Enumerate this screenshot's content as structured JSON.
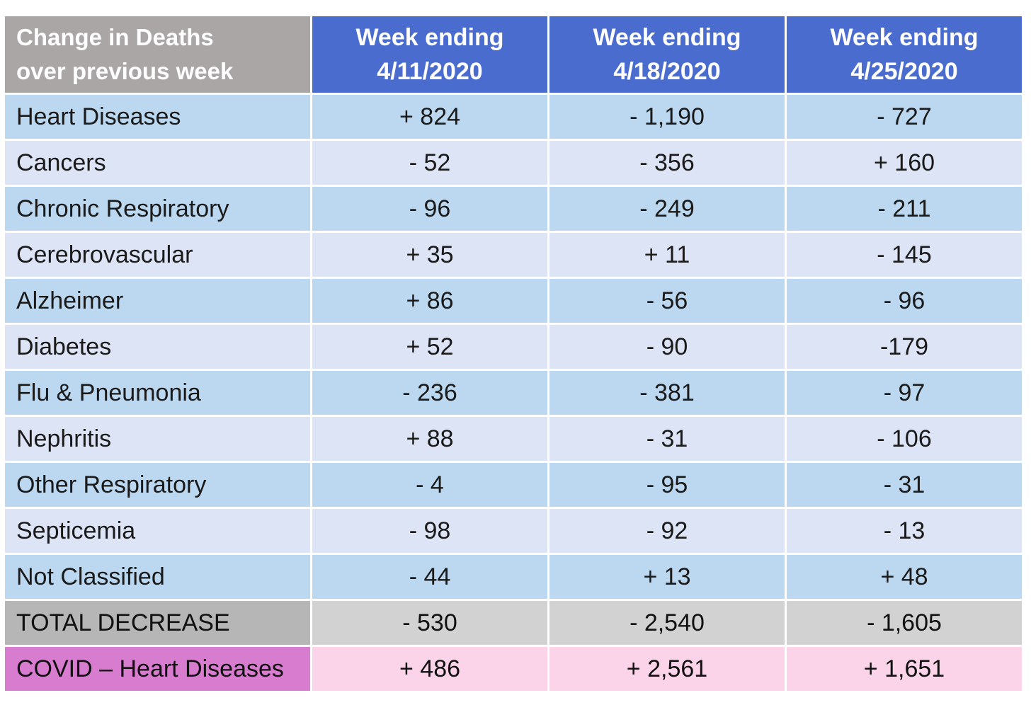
{
  "chart_data": {
    "type": "table",
    "header": {
      "corner_line1": "Change in Deaths",
      "corner_line2": "over previous week",
      "columns": [
        {
          "line1": "Week ending",
          "line2": "4/11/2020"
        },
        {
          "line1": "Week ending",
          "line2": "4/18/2020"
        },
        {
          "line1": "Week ending",
          "line2": "4/25/2020"
        }
      ]
    },
    "rows": [
      {
        "label": "Heart Diseases",
        "values": [
          "+ 824",
          "- 1,190",
          "- 727"
        ]
      },
      {
        "label": "Cancers",
        "values": [
          "- 52",
          "- 356",
          "+ 160"
        ]
      },
      {
        "label": "Chronic Respiratory",
        "values": [
          "- 96",
          "- 249",
          "- 211"
        ]
      },
      {
        "label": "Cerebrovascular",
        "values": [
          "+ 35",
          "+  11",
          "- 145"
        ]
      },
      {
        "label": "Alzheimer",
        "values": [
          "+ 86",
          "- 56",
          "- 96"
        ]
      },
      {
        "label": "Diabetes",
        "values": [
          "+ 52",
          "- 90",
          "-179"
        ]
      },
      {
        "label": "Flu & Pneumonia",
        "values": [
          "- 236",
          "- 381",
          "- 97"
        ]
      },
      {
        "label": "Nephritis",
        "values": [
          "+ 88",
          "- 31",
          "- 106"
        ]
      },
      {
        "label": "Other Respiratory",
        "values": [
          "- 4",
          "- 95",
          "- 31"
        ]
      },
      {
        "label": "Septicemia",
        "values": [
          "- 98",
          "- 92",
          "- 13"
        ]
      },
      {
        "label": "Not Classified",
        "values": [
          "- 44",
          "+ 13",
          "+ 48"
        ]
      }
    ],
    "total": {
      "label": "TOTAL DECREASE",
      "values": [
        "- 530",
        "- 2,540",
        "- 1,605"
      ]
    },
    "covid": {
      "label": "COVID – Heart Diseases",
      "values": [
        "+ 486",
        "+ 2,561",
        "+ 1,651"
      ]
    }
  }
}
